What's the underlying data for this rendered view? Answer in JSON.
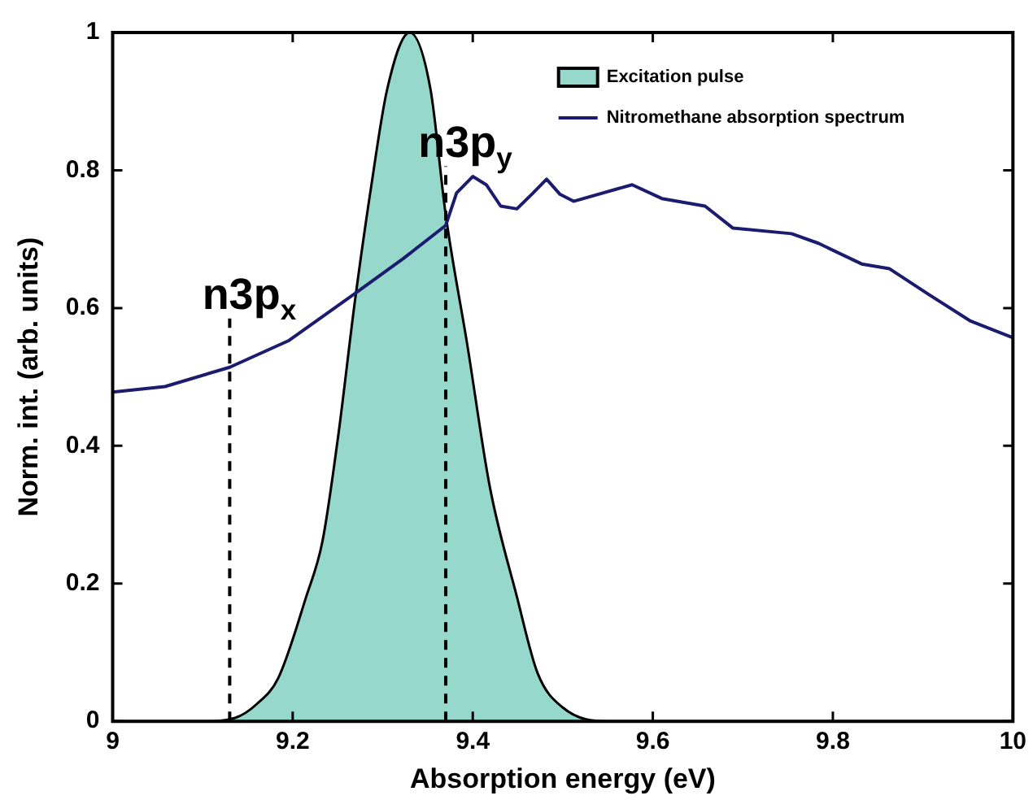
{
  "chart_data": {
    "type": "line",
    "xlabel": "Absorption energy (eV)",
    "ylabel": "Norm. int. (arb. units)",
    "xlim": [
      9,
      10
    ],
    "ylim": [
      0,
      1
    ],
    "xticks": [
      9,
      9.2,
      9.4,
      9.6,
      9.8,
      10
    ],
    "yticks": [
      0,
      0.2,
      0.4,
      0.6,
      0.8,
      1
    ],
    "grid": false,
    "legend": "top right",
    "marker": "none",
    "series": [
      {
        "name": "Excitation pulse",
        "type": "area",
        "color": "#96d8cb",
        "x": [
          9.0,
          9.1,
          9.136,
          9.16,
          9.184,
          9.215,
          9.233,
          9.251,
          9.269,
          9.287,
          9.305,
          9.33,
          9.353,
          9.37,
          9.394,
          9.419,
          9.449,
          9.472,
          9.5,
          9.55,
          9.6,
          10.0
        ],
        "values": [
          0,
          0,
          0.005,
          0.025,
          0.063,
          0.181,
          0.261,
          0.419,
          0.609,
          0.775,
          0.918,
          1.0,
          0.918,
          0.735,
          0.546,
          0.34,
          0.181,
          0.07,
          0.02,
          0,
          0,
          0
        ]
      },
      {
        "name": "Nitromethane absorption spectrum",
        "type": "line",
        "color": "#1c1c6e",
        "x": [
          9.0,
          9.058,
          9.13,
          9.196,
          9.269,
          9.323,
          9.37,
          9.382,
          9.4,
          9.415,
          9.431,
          9.449,
          9.467,
          9.482,
          9.497,
          9.512,
          9.577,
          9.61,
          9.658,
          9.689,
          9.754,
          9.784,
          9.832,
          9.863,
          9.905,
          9.953,
          10.0
        ],
        "values": [
          0.478,
          0.486,
          0.514,
          0.553,
          0.621,
          0.672,
          0.72,
          0.767,
          0.791,
          0.779,
          0.748,
          0.744,
          0.767,
          0.787,
          0.765,
          0.755,
          0.779,
          0.759,
          0.748,
          0.716,
          0.708,
          0.694,
          0.664,
          0.657,
          0.621,
          0.581,
          0.557
        ]
      }
    ],
    "ref_lines": [
      {
        "axis": "x",
        "value": 9.13,
        "label": "n3p$_{x}$",
        "line_style": "dashed",
        "color": "#000000"
      },
      {
        "axis": "x",
        "value": 9.37,
        "label": "n3p$_{y}$",
        "line_style": "dashed",
        "color": "#000000"
      }
    ]
  }
}
